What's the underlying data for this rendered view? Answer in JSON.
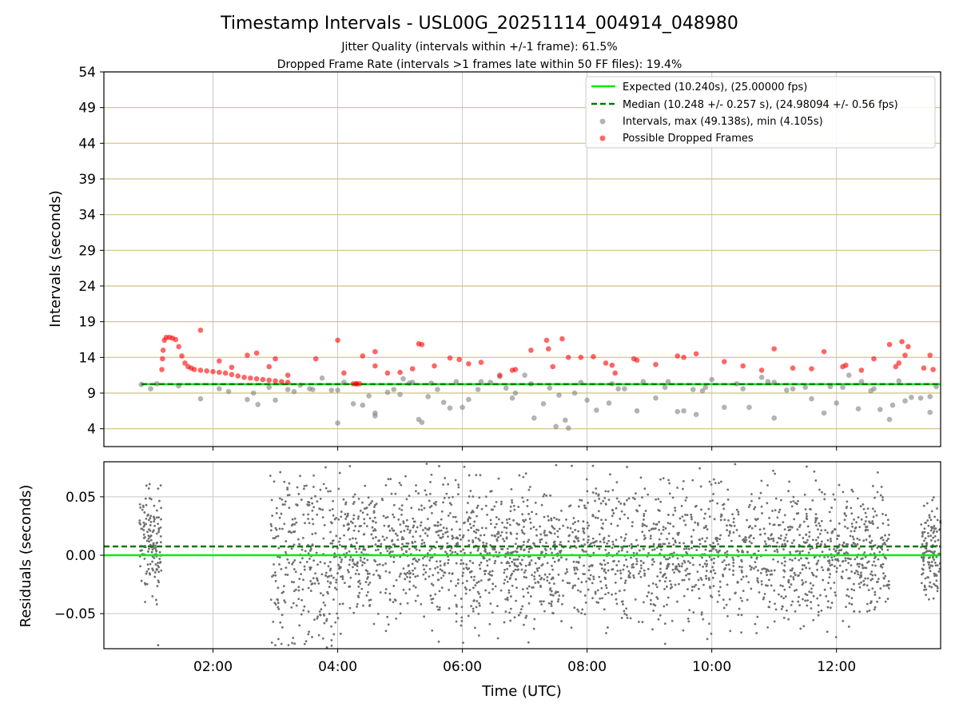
{
  "chart_data": [
    {
      "type": "scatter",
      "title": "Timestamp Intervals - USL00G_20251114_004914_048980",
      "subtitle_1": "Jitter Quality (intervals within +/-1 frame): 61.5%",
      "subtitle_2": "Dropped Frame Rate (intervals >1 frames late within 50 FF files): 19.4%",
      "xlabel": "",
      "ylabel": "Intervals (seconds)",
      "xlim_hours": [
        0.25,
        13.67
      ],
      "ylim": [
        1.5,
        54
      ],
      "yticks": [
        4,
        9,
        14,
        19,
        24,
        29,
        34,
        39,
        44,
        49,
        54
      ],
      "ytick_labels": [
        "4",
        "9",
        "14",
        "19",
        "24",
        "29",
        "34",
        "39",
        "44",
        "49",
        "54"
      ],
      "xticks_hours": [
        2,
        4,
        6,
        8,
        10,
        12
      ],
      "expected_interval": 10.24,
      "median_interval": 10.248,
      "legend": {
        "position": "top-right",
        "entries": [
          "Expected (10.240s), (25.00000 fps)",
          "Median (10.248 +/- 0.257 s), (24.98094 +/- 0.56 fps)",
          "Intervals, max (49.138s), min (4.105s)",
          "Possible Dropped Frames"
        ]
      },
      "series": [
        {
          "name": "Intervals",
          "color": "#808080",
          "points": [
            [
              0.85,
              10.2
            ],
            [
              1.0,
              9.6
            ],
            [
              1.1,
              10.3
            ],
            [
              1.45,
              10.0
            ],
            [
              1.8,
              8.2
            ],
            [
              2.1,
              9.6
            ],
            [
              2.25,
              9.2
            ],
            [
              2.55,
              8.1
            ],
            [
              2.65,
              9.0
            ],
            [
              2.72,
              7.4
            ],
            [
              2.9,
              9.8
            ],
            [
              3.0,
              8.0
            ],
            [
              3.2,
              9.5
            ],
            [
              3.4,
              10.1
            ],
            [
              3.6,
              9.5
            ],
            [
              3.75,
              11.1
            ],
            [
              3.9,
              9.4
            ],
            [
              4.0,
              9.4
            ],
            [
              4.0,
              4.8
            ],
            [
              4.1,
              10.5
            ],
            [
              4.25,
              7.5
            ],
            [
              4.4,
              7.3
            ],
            [
              4.6,
              6.2
            ],
            [
              4.6,
              5.8
            ],
            [
              4.8,
              9.1
            ],
            [
              5.0,
              8.8
            ],
            [
              5.05,
              11.0
            ],
            [
              5.2,
              10.5
            ],
            [
              5.3,
              5.3
            ],
            [
              5.35,
              4.9
            ],
            [
              5.45,
              8.5
            ],
            [
              5.6,
              9.5
            ],
            [
              5.7,
              7.7
            ],
            [
              5.8,
              6.9
            ],
            [
              6.0,
              7.0
            ],
            [
              6.1,
              8.1
            ],
            [
              6.25,
              9.5
            ],
            [
              6.45,
              10.5
            ],
            [
              6.6,
              11.3
            ],
            [
              6.8,
              8.3
            ],
            [
              6.85,
              9.0
            ],
            [
              7.0,
              11.5
            ],
            [
              7.15,
              5.5
            ],
            [
              7.3,
              7.5
            ],
            [
              7.5,
              4.3
            ],
            [
              7.55,
              8.7
            ],
            [
              7.65,
              5.2
            ],
            [
              7.7,
              4.1
            ],
            [
              7.8,
              9.0
            ],
            [
              8.0,
              8.0
            ],
            [
              8.15,
              6.6
            ],
            [
              8.35,
              7.6
            ],
            [
              8.5,
              9.6
            ],
            [
              8.8,
              6.5
            ],
            [
              8.9,
              10.6
            ],
            [
              9.1,
              8.3
            ],
            [
              9.25,
              9.8
            ],
            [
              9.45,
              6.4
            ],
            [
              9.55,
              6.5
            ],
            [
              9.75,
              6.0
            ],
            [
              9.85,
              9.3
            ],
            [
              10.0,
              10.9
            ],
            [
              10.2,
              7.0
            ],
            [
              10.4,
              10.3
            ],
            [
              10.6,
              7.0
            ],
            [
              10.8,
              11.2
            ],
            [
              11.0,
              5.5
            ],
            [
              11.2,
              9.4
            ],
            [
              11.5,
              9.8
            ],
            [
              11.6,
              8.2
            ],
            [
              11.8,
              6.2
            ],
            [
              12.0,
              7.6
            ],
            [
              12.1,
              9.8
            ],
            [
              12.2,
              11.5
            ],
            [
              12.35,
              6.8
            ],
            [
              12.55,
              9.3
            ],
            [
              12.7,
              6.7
            ],
            [
              12.85,
              5.3
            ],
            [
              12.9,
              7.3
            ],
            [
              13.1,
              7.9
            ],
            [
              13.2,
              8.4
            ],
            [
              13.35,
              8.3
            ],
            [
              13.5,
              8.5
            ],
            [
              13.5,
              6.3
            ],
            [
              13.6,
              9.9
            ],
            [
              3.3,
              9.2
            ],
            [
              3.55,
              9.6
            ],
            [
              4.5,
              8.6
            ],
            [
              4.9,
              9.5
            ],
            [
              5.15,
              10.4
            ],
            [
              5.9,
              10.6
            ],
            [
              6.3,
              10.6
            ],
            [
              7.1,
              10.3
            ],
            [
              7.4,
              9.7
            ],
            [
              7.9,
              10.5
            ],
            [
              8.6,
              9.6
            ],
            [
              9.3,
              10.6
            ],
            [
              9.7,
              9.5
            ],
            [
              10.5,
              9.6
            ],
            [
              10.9,
              10.6
            ],
            [
              11.3,
              9.6
            ],
            [
              12.4,
              10.6
            ],
            [
              12.6,
              9.6
            ],
            [
              13.0,
              10.7
            ],
            [
              5.5,
              10.4
            ],
            [
              6.7,
              9.7
            ],
            [
              8.4,
              10.3
            ],
            [
              9.9,
              9.8
            ],
            [
              11.0,
              10.5
            ],
            [
              11.9,
              9.9
            ]
          ]
        },
        {
          "name": "Possible Dropped Frames",
          "color": "#ff0000",
          "points": [
            [
              1.18,
              12.3
            ],
            [
              1.19,
              13.8
            ],
            [
              1.2,
              15.0
            ],
            [
              1.22,
              16.4
            ],
            [
              1.25,
              16.8
            ],
            [
              1.3,
              16.8
            ],
            [
              1.35,
              16.7
            ],
            [
              1.4,
              16.5
            ],
            [
              1.45,
              15.5
            ],
            [
              1.5,
              14.2
            ],
            [
              1.55,
              13.2
            ],
            [
              1.6,
              12.7
            ],
            [
              1.65,
              12.5
            ],
            [
              1.7,
              12.3
            ],
            [
              1.8,
              12.2
            ],
            [
              1.9,
              12.1
            ],
            [
              2.0,
              12.0
            ],
            [
              2.1,
              11.9
            ],
            [
              2.2,
              11.8
            ],
            [
              2.3,
              11.6
            ],
            [
              2.4,
              11.4
            ],
            [
              2.5,
              11.2
            ],
            [
              2.6,
              11.1
            ],
            [
              2.7,
              11.0
            ],
            [
              2.8,
              10.9
            ],
            [
              2.9,
              10.8
            ],
            [
              3.0,
              10.7
            ],
            [
              3.1,
              10.6
            ],
            [
              3.2,
              10.5
            ],
            [
              1.8,
              17.8
            ],
            [
              2.1,
              13.5
            ],
            [
              2.3,
              12.6
            ],
            [
              2.55,
              14.3
            ],
            [
              2.7,
              14.6
            ],
            [
              2.9,
              12.7
            ],
            [
              3.0,
              13.8
            ],
            [
              3.2,
              11.5
            ],
            [
              3.65,
              13.8
            ],
            [
              4.0,
              16.4
            ],
            [
              4.1,
              11.8
            ],
            [
              4.3,
              10.3
            ],
            [
              4.4,
              14.2
            ],
            [
              4.6,
              14.8
            ],
            [
              4.6,
              12.8
            ],
            [
              4.8,
              11.8
            ],
            [
              5.0,
              11.9
            ],
            [
              5.2,
              12.4
            ],
            [
              5.3,
              15.9
            ],
            [
              5.35,
              15.8
            ],
            [
              5.55,
              12.8
            ],
            [
              5.8,
              13.9
            ],
            [
              5.95,
              13.7
            ],
            [
              6.1,
              13.1
            ],
            [
              6.3,
              13.3
            ],
            [
              6.6,
              11.5
            ],
            [
              6.8,
              12.2
            ],
            [
              6.85,
              12.3
            ],
            [
              7.1,
              15.0
            ],
            [
              7.35,
              16.4
            ],
            [
              7.38,
              15.2
            ],
            [
              7.45,
              12.7
            ],
            [
              7.6,
              16.6
            ],
            [
              7.7,
              14.0
            ],
            [
              7.9,
              14.0
            ],
            [
              8.1,
              14.1
            ],
            [
              8.3,
              13.2
            ],
            [
              8.4,
              12.9
            ],
            [
              8.45,
              11.8
            ],
            [
              8.75,
              13.8
            ],
            [
              8.8,
              13.6
            ],
            [
              9.1,
              13.0
            ],
            [
              9.45,
              14.2
            ],
            [
              9.55,
              14.0
            ],
            [
              9.75,
              14.5
            ],
            [
              10.2,
              13.4
            ],
            [
              10.5,
              12.8
            ],
            [
              10.8,
              12.2
            ],
            [
              11.0,
              15.2
            ],
            [
              11.3,
              12.5
            ],
            [
              11.6,
              12.4
            ],
            [
              11.8,
              14.8
            ],
            [
              12.1,
              12.7
            ],
            [
              12.15,
              12.9
            ],
            [
              12.4,
              12.2
            ],
            [
              12.6,
              13.8
            ],
            [
              12.85,
              15.8
            ],
            [
              12.95,
              12.7
            ],
            [
              13.0,
              13.2
            ],
            [
              13.05,
              16.2
            ],
            [
              13.1,
              14.3
            ],
            [
              13.15,
              15.5
            ],
            [
              13.4,
              12.5
            ],
            [
              13.5,
              14.3
            ],
            [
              13.55,
              12.3
            ],
            [
              4.25,
              10.3
            ],
            [
              4.3,
              10.3
            ],
            [
              4.35,
              10.3
            ]
          ]
        }
      ]
    },
    {
      "type": "scatter",
      "title": "",
      "xlabel": "Time (UTC)",
      "ylabel": "Residuals (seconds)",
      "xlim_hours": [
        0.25,
        13.67
      ],
      "ylim": [
        -0.08,
        0.08
      ],
      "yticks": [
        0.05,
        0.0,
        -0.05
      ],
      "ytick_labels": [
        "0.05",
        "0.00",
        "−0.05"
      ],
      "xticks_hours": [
        2,
        4,
        6,
        8,
        10,
        12
      ],
      "xtick_labels": [
        "02:00",
        "04:00",
        "06:00",
        "08:00",
        "10:00",
        "12:00"
      ],
      "expected_residual": 0.0,
      "median_residual": 0.0075,
      "clusters": [
        {
          "x_start": 0.82,
          "x_end": 1.17,
          "center": 0.01,
          "spread": 0.022,
          "count": 140
        },
        {
          "x_start": 2.93,
          "x_end": 3.95,
          "center": 0.0,
          "spread": 0.05,
          "count": 300
        },
        {
          "x_start": 3.95,
          "x_end": 12.85,
          "center": 0.003,
          "spread": 0.03,
          "count": 2400
        },
        {
          "x_start": 13.35,
          "x_end": 13.67,
          "center": 0.005,
          "spread": 0.02,
          "count": 130
        }
      ],
      "notable_points": [
        [
          1.12,
          -0.077
        ],
        [
          1.1,
          -0.042
        ],
        [
          1.12,
          0.057
        ],
        [
          3.0,
          -0.077
        ],
        [
          2.92,
          0.068
        ]
      ],
      "point_color": "#707070"
    }
  ],
  "colors": {
    "expected": "#00ee00",
    "median": "#007a00",
    "grid_top": "#d4bf86",
    "grid": "#c8c8c8"
  }
}
